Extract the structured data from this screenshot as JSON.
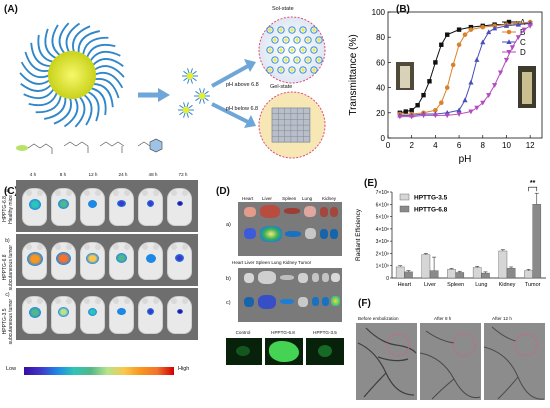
{
  "panels": {
    "A": {
      "label": "(A)",
      "sol_state": "Sol-state",
      "gel_state": "Gel-state",
      "ph_above": "pH above 6.8",
      "ph_below": "pH below 6.8"
    },
    "B": {
      "label": "(B)"
    },
    "C": {
      "label": "(C)",
      "times": [
        "4 h",
        "8 h",
        "12 h",
        "24 h",
        "48 h",
        "72 h"
      ],
      "row_a": "a)",
      "row_a_text": [
        "HPPTG-6.8",
        "Healthy mice"
      ],
      "row_b": "b)",
      "row_b_text": [
        "HPPTG-6.8",
        "subcutaneous tumor"
      ],
      "row_c": "c)",
      "row_c_text": [
        "HPPTG-3.5",
        "subcutaneous tumor"
      ],
      "scale_low": "Low",
      "scale_high": "High"
    },
    "D": {
      "label": "(D)",
      "organs_top": [
        "Heart",
        "Liver",
        "Spleen",
        "Lung",
        "Kidney"
      ],
      "organs_mid": "Heart Liver Spleen Lung Kidney Tumor",
      "row_a": "a)",
      "row_b": "b)",
      "row_c": "c)",
      "fluor_labels": [
        "Control",
        "HPPTG-6.8",
        "HPPTG-3.5"
      ]
    },
    "E": {
      "label": "(E)"
    },
    "F": {
      "label": "(F)",
      "titles": [
        "Before embolization",
        "After 8 h",
        "After 12 h"
      ]
    }
  },
  "chart_data": [
    {
      "panel": "B",
      "type": "line",
      "xlabel": "pH",
      "ylabel": "Transmittance (%)",
      "xlim": [
        0,
        13
      ],
      "ylim": [
        0,
        100
      ],
      "xticks": [
        0,
        2,
        4,
        6,
        8,
        10,
        12
      ],
      "yticks": [
        0,
        20,
        40,
        60,
        80,
        100
      ],
      "legend_position": "top-right",
      "series": [
        {
          "name": "A",
          "color": "#111111",
          "marker": "square",
          "x": [
            1,
            1.5,
            2,
            2.5,
            3,
            3.5,
            4,
            4.5,
            5,
            6,
            7,
            8,
            9,
            10,
            11,
            12
          ],
          "y": [
            20,
            21,
            22,
            26,
            34,
            45,
            60,
            74,
            82,
            86,
            88,
            89,
            90,
            90,
            91,
            91
          ]
        },
        {
          "name": "B",
          "color": "#d9822b",
          "marker": "circle",
          "x": [
            1,
            2,
            3,
            4,
            4.5,
            5,
            5.5,
            6,
            6.5,
            7,
            8,
            9,
            10,
            11,
            12
          ],
          "y": [
            19,
            19,
            20,
            22,
            28,
            40,
            58,
            74,
            82,
            86,
            88,
            89,
            90,
            91,
            92
          ]
        },
        {
          "name": "C",
          "color": "#4b4fb8",
          "marker": "triangle",
          "x": [
            1,
            2,
            3,
            4,
            5,
            6,
            6.5,
            7,
            7.5,
            8,
            8.5,
            9,
            10,
            11,
            12
          ],
          "y": [
            18,
            18,
            19,
            19,
            20,
            22,
            30,
            44,
            62,
            76,
            84,
            87,
            89,
            90,
            91
          ]
        },
        {
          "name": "D",
          "color": "#b44ac0",
          "marker": "triangle-down",
          "x": [
            1,
            2,
            3,
            4,
            5,
            6,
            7,
            7.5,
            8,
            8.5,
            9,
            9.5,
            10,
            10.5,
            11,
            11.5,
            12
          ],
          "y": [
            17,
            17,
            18,
            18,
            18,
            19,
            21,
            24,
            28,
            34,
            42,
            52,
            62,
            72,
            80,
            86,
            89
          ]
        }
      ]
    },
    {
      "panel": "E",
      "type": "bar",
      "ylabel": "Radiant Efficiency",
      "categories": [
        "Heart",
        "Liver",
        "Spleen",
        "Lung",
        "Kidney",
        "Tumor"
      ],
      "yticks": [
        "0",
        "1×10⁸",
        "2×10⁸",
        "3×10⁸",
        "4×10⁸",
        "5×10⁸",
        "6×10⁸",
        "7×10⁸"
      ],
      "ylim": [
        0,
        700000000
      ],
      "legend_position": "top-left",
      "significance": "**",
      "series": [
        {
          "name": "HPTTG-3.5",
          "color": "#d6d6d6",
          "values": [
            90000000,
            190000000,
            70000000,
            85000000,
            220000000,
            60000000
          ],
          "errors": [
            10000000,
            10000000,
            8000000,
            10000000,
            10000000,
            10000000
          ]
        },
        {
          "name": "HPTTG-6.8",
          "color": "#8a8a8a",
          "values": [
            50000000,
            60000000,
            45000000,
            40000000,
            80000000,
            600000000
          ],
          "errors": [
            10000000,
            110000000,
            10000000,
            10000000,
            10000000,
            90000000
          ]
        }
      ]
    }
  ]
}
